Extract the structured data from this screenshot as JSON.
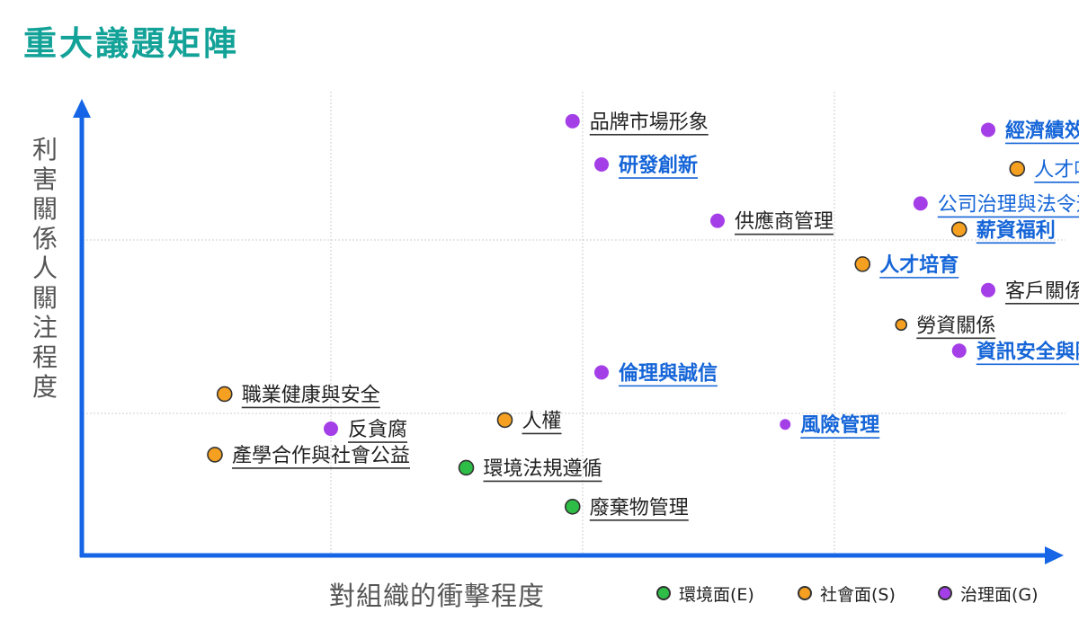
{
  "title": "重大議題矩陣",
  "colors": {
    "title": "#13a298",
    "axis": "#1565e6",
    "link": "#1565d8",
    "E": "#2ebd47",
    "S": "#f5a020",
    "G": "#a43fe8"
  },
  "chart_data": {
    "type": "scatter",
    "title": "重大議題矩陣",
    "xlabel": "對組織的衝擊程度",
    "ylabel": "利害關係人關注程度",
    "xlim": [
      0,
      10
    ],
    "ylim": [
      0,
      10
    ],
    "grid": true,
    "legend_position": "bottom-right",
    "legend": [
      {
        "key": "E",
        "label": "環境面(E)"
      },
      {
        "key": "S",
        "label": "社會面(S)"
      },
      {
        "key": "G",
        "label": "治理面(G)"
      }
    ],
    "points": [
      {
        "label": "品牌市場形象",
        "x": 4.9,
        "y": 9.9,
        "group": "G",
        "bold": false,
        "link": false
      },
      {
        "label": "研發創新",
        "x": 5.2,
        "y": 8.9,
        "group": "G",
        "bold": true,
        "link": true
      },
      {
        "label": "供應商管理",
        "x": 6.4,
        "y": 7.6,
        "group": "G",
        "bold": false,
        "link": false
      },
      {
        "label": "經濟績效",
        "x": 9.2,
        "y": 9.7,
        "group": "G",
        "bold": true,
        "link": true
      },
      {
        "label": "人才吸引與發展",
        "x": 9.5,
        "y": 8.8,
        "group": "S",
        "bold": false,
        "link": true
      },
      {
        "label": "公司治理與法令遵循",
        "x": 8.5,
        "y": 8.0,
        "group": "G",
        "bold": false,
        "link": true
      },
      {
        "label": "薪資福利",
        "x": 8.9,
        "y": 7.4,
        "group": "S",
        "bold": true,
        "link": true
      },
      {
        "label": "人才培育",
        "x": 7.9,
        "y": 6.6,
        "group": "S",
        "bold": true,
        "link": true
      },
      {
        "label": "客戶關係",
        "x": 9.2,
        "y": 6.0,
        "group": "G",
        "bold": false,
        "link": false
      },
      {
        "label": "勞資關係",
        "x": 8.3,
        "y": 5.2,
        "group": "S",
        "bold": false,
        "link": false
      },
      {
        "label": "資訊安全與隱私保護",
        "x": 8.9,
        "y": 4.6,
        "group": "G",
        "bold": true,
        "link": true
      },
      {
        "label": "倫理與誠信",
        "x": 5.2,
        "y": 4.1,
        "group": "G",
        "bold": true,
        "link": true
      },
      {
        "label": "職業健康與安全",
        "x": 1.3,
        "y": 3.6,
        "group": "S",
        "bold": false,
        "link": false
      },
      {
        "label": "反貪腐",
        "x": 2.4,
        "y": 2.8,
        "group": "G",
        "bold": false,
        "link": false
      },
      {
        "label": "人權",
        "x": 4.2,
        "y": 3.0,
        "group": "S",
        "bold": false,
        "link": false
      },
      {
        "label": "風險管理",
        "x": 7.1,
        "y": 2.9,
        "group": "G",
        "bold": true,
        "link": true
      },
      {
        "label": "產學合作與社會公益",
        "x": 1.2,
        "y": 2.2,
        "group": "S",
        "bold": false,
        "link": false
      },
      {
        "label": "環境法規遵循",
        "x": 3.8,
        "y": 1.9,
        "group": "E",
        "bold": false,
        "link": false
      },
      {
        "label": "廢棄物管理",
        "x": 4.9,
        "y": 1.0,
        "group": "E",
        "bold": false,
        "link": false
      }
    ]
  }
}
